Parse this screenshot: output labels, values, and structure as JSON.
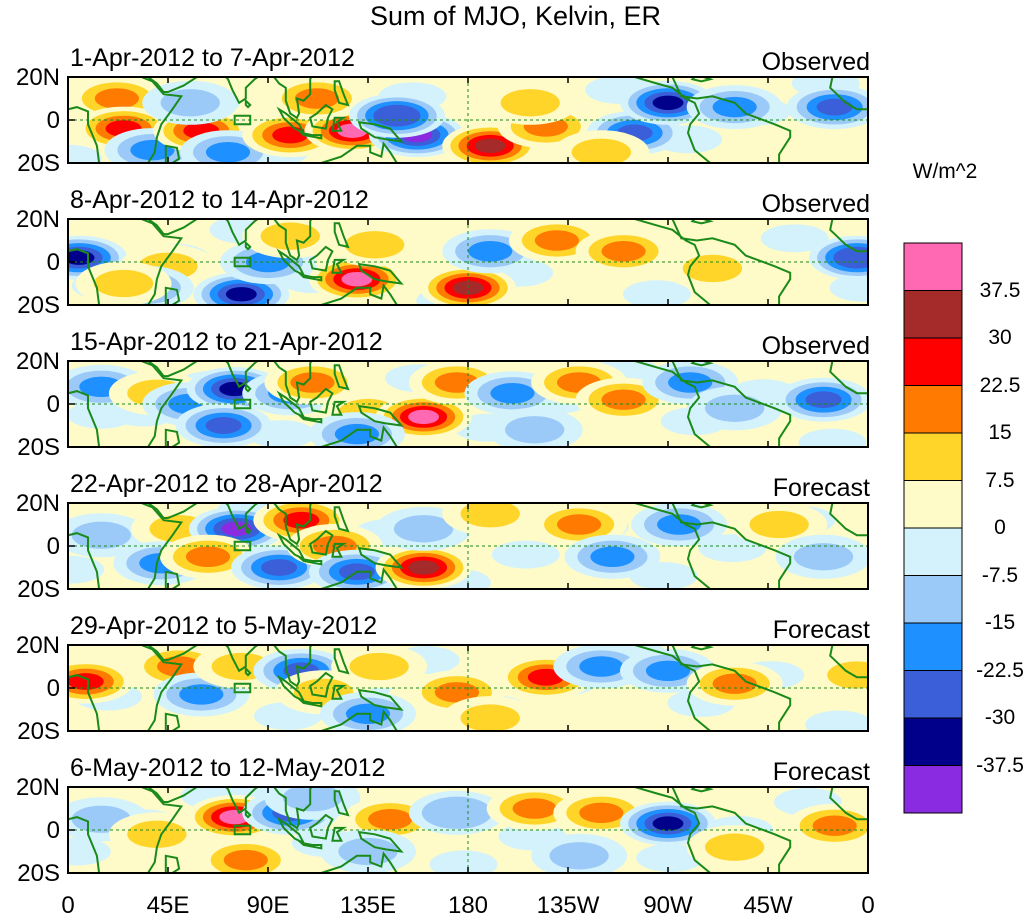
{
  "chart_data": {
    "type": "heatmap",
    "title": "Sum of MJO, Kelvin, ER",
    "colorbar": {
      "units": "W/m^2",
      "levels": [
        -37.5,
        -30,
        -22.5,
        -15,
        -7.5,
        0,
        7.5,
        15,
        22.5,
        30,
        37.5
      ],
      "colors": [
        "#8a2be2",
        "#00008b",
        "#3a5fd9",
        "#1e90ff",
        "#9ccaf8",
        "#d4f2fb",
        "#fffbc8",
        "#ffd52a",
        "#ff7a00",
        "#ff0000",
        "#a52a2a",
        "#ff69b4"
      ]
    },
    "x_ticks": [
      "0",
      "45E",
      "90E",
      "135E",
      "180",
      "135W",
      "90W",
      "45W",
      "0"
    ],
    "x_range_deg": [
      0,
      360
    ],
    "y_ticks": [
      "20N",
      "0",
      "20S"
    ],
    "y_range_deg": [
      -20,
      20
    ],
    "panels": [
      {
        "title": "1-Apr-2012 to 7-Apr-2012",
        "kind": "Observed",
        "features": [
          {
            "lon": 22,
            "lat": 10,
            "val": 20
          },
          {
            "lon": 25,
            "lat": -4,
            "val": 24
          },
          {
            "lon": 38,
            "lat": -14,
            "val": -16
          },
          {
            "lon": 60,
            "lat": -5,
            "val": 25
          },
          {
            "lon": 72,
            "lat": -15,
            "val": -18
          },
          {
            "lon": 55,
            "lat": 8,
            "val": -8
          },
          {
            "lon": 100,
            "lat": -7,
            "val": 28
          },
          {
            "lon": 128,
            "lat": -5,
            "val": 45
          },
          {
            "lon": 112,
            "lat": 10,
            "val": 18
          },
          {
            "lon": 157,
            "lat": -7,
            "val": -44
          },
          {
            "lon": 148,
            "lat": 2,
            "val": -30
          },
          {
            "lon": 190,
            "lat": -12,
            "val": 30
          },
          {
            "lon": 215,
            "lat": -3,
            "val": 22
          },
          {
            "lon": 208,
            "lat": 8,
            "val": 12
          },
          {
            "lon": 255,
            "lat": -6,
            "val": -28
          },
          {
            "lon": 270,
            "lat": 8,
            "val": -35
          },
          {
            "lon": 300,
            "lat": 6,
            "val": -16
          },
          {
            "lon": 345,
            "lat": 6,
            "val": -28
          },
          {
            "lon": 240,
            "lat": -15,
            "val": 9
          }
        ]
      },
      {
        "title": "8-Apr-2012 to 14-Apr-2012",
        "kind": "Observed",
        "features": [
          {
            "lon": 5,
            "lat": 2,
            "val": -32
          },
          {
            "lon": 45,
            "lat": -2,
            "val": 12
          },
          {
            "lon": 35,
            "lat": -12,
            "val": -20
          },
          {
            "lon": 78,
            "lat": -15,
            "val": -33
          },
          {
            "lon": 90,
            "lat": 0,
            "val": -16
          },
          {
            "lon": 100,
            "lat": 12,
            "val": 10
          },
          {
            "lon": 130,
            "lat": -8,
            "val": 45
          },
          {
            "lon": 138,
            "lat": 8,
            "val": 10
          },
          {
            "lon": 180,
            "lat": -12,
            "val": 30
          },
          {
            "lon": 190,
            "lat": 5,
            "val": -20
          },
          {
            "lon": 220,
            "lat": 10,
            "val": 18
          },
          {
            "lon": 250,
            "lat": 5,
            "val": 15
          },
          {
            "lon": 290,
            "lat": -3,
            "val": 10
          },
          {
            "lon": 355,
            "lat": 2,
            "val": -30
          },
          {
            "lon": 25,
            "lat": -10,
            "val": 12
          }
        ]
      },
      {
        "title": "15-Apr-2012 to 21-Apr-2012",
        "kind": "Observed",
        "features": [
          {
            "lon": 15,
            "lat": 8,
            "val": -22
          },
          {
            "lon": 40,
            "lat": 5,
            "val": 12
          },
          {
            "lon": 55,
            "lat": 0,
            "val": -16
          },
          {
            "lon": 75,
            "lat": 7,
            "val": -34
          },
          {
            "lon": 70,
            "lat": -10,
            "val": -24
          },
          {
            "lon": 100,
            "lat": 5,
            "val": -20
          },
          {
            "lon": 110,
            "lat": 10,
            "val": 22
          },
          {
            "lon": 135,
            "lat": -4,
            "val": 12
          },
          {
            "lon": 160,
            "lat": -6,
            "val": 42
          },
          {
            "lon": 130,
            "lat": -14,
            "val": -20
          },
          {
            "lon": 175,
            "lat": 10,
            "val": 15
          },
          {
            "lon": 200,
            "lat": 5,
            "val": -18
          },
          {
            "lon": 230,
            "lat": 10,
            "val": 20
          },
          {
            "lon": 250,
            "lat": 2,
            "val": 15
          },
          {
            "lon": 280,
            "lat": 10,
            "val": -22
          },
          {
            "lon": 300,
            "lat": -2,
            "val": -12
          },
          {
            "lon": 340,
            "lat": 2,
            "val": -28
          },
          {
            "lon": 210,
            "lat": -12,
            "val": -10
          }
        ]
      },
      {
        "title": "22-Apr-2012 to 28-Apr-2012",
        "kind": "Forecast",
        "features": [
          {
            "lon": 15,
            "lat": 5,
            "val": -10
          },
          {
            "lon": 50,
            "lat": 8,
            "val": 12
          },
          {
            "lon": 42,
            "lat": -8,
            "val": -22
          },
          {
            "lon": 76,
            "lat": 8,
            "val": -38
          },
          {
            "lon": 63,
            "lat": -5,
            "val": 20
          },
          {
            "lon": 95,
            "lat": -10,
            "val": -26
          },
          {
            "lon": 105,
            "lat": 12,
            "val": 28
          },
          {
            "lon": 120,
            "lat": 0,
            "val": 18
          },
          {
            "lon": 130,
            "lat": -12,
            "val": -24
          },
          {
            "lon": 160,
            "lat": -10,
            "val": 30
          },
          {
            "lon": 160,
            "lat": 8,
            "val": -12
          },
          {
            "lon": 190,
            "lat": 15,
            "val": 10
          },
          {
            "lon": 230,
            "lat": 10,
            "val": 15
          },
          {
            "lon": 245,
            "lat": -5,
            "val": -18
          },
          {
            "lon": 275,
            "lat": 10,
            "val": -22
          },
          {
            "lon": 320,
            "lat": 10,
            "val": 12
          },
          {
            "lon": 340,
            "lat": -5,
            "val": -10
          }
        ]
      },
      {
        "title": "29-Apr-2012 to 5-May-2012",
        "kind": "Forecast",
        "features": [
          {
            "lon": 8,
            "lat": 3,
            "val": 26
          },
          {
            "lon": 50,
            "lat": 10,
            "val": 15
          },
          {
            "lon": 60,
            "lat": -3,
            "val": -22
          },
          {
            "lon": 78,
            "lat": 10,
            "val": 12
          },
          {
            "lon": 105,
            "lat": 8,
            "val": -26
          },
          {
            "lon": 115,
            "lat": -2,
            "val": 10
          },
          {
            "lon": 140,
            "lat": 10,
            "val": 12
          },
          {
            "lon": 175,
            "lat": -2,
            "val": 20
          },
          {
            "lon": 135,
            "lat": -12,
            "val": -18
          },
          {
            "lon": 215,
            "lat": 5,
            "val": 25
          },
          {
            "lon": 240,
            "lat": 10,
            "val": -22
          },
          {
            "lon": 270,
            "lat": 8,
            "val": -20
          },
          {
            "lon": 300,
            "lat": 2,
            "val": 20
          },
          {
            "lon": 355,
            "lat": 6,
            "val": 14
          },
          {
            "lon": 190,
            "lat": -14,
            "val": 9
          }
        ]
      },
      {
        "title": "6-May-2012 to 12-May-2012",
        "kind": "Forecast",
        "features": [
          {
            "lon": 15,
            "lat": 5,
            "val": -12
          },
          {
            "lon": 40,
            "lat": -2,
            "val": 10
          },
          {
            "lon": 75,
            "lat": 6,
            "val": 40
          },
          {
            "lon": 80,
            "lat": -14,
            "val": 22
          },
          {
            "lon": 100,
            "lat": 8,
            "val": -28
          },
          {
            "lon": 110,
            "lat": 15,
            "val": -12
          },
          {
            "lon": 145,
            "lat": 5,
            "val": 18
          },
          {
            "lon": 135,
            "lat": -10,
            "val": -14
          },
          {
            "lon": 175,
            "lat": 8,
            "val": -15
          },
          {
            "lon": 210,
            "lat": 10,
            "val": 20
          },
          {
            "lon": 240,
            "lat": 8,
            "val": 18
          },
          {
            "lon": 270,
            "lat": 3,
            "val": -34
          },
          {
            "lon": 300,
            "lat": -8,
            "val": 12
          },
          {
            "lon": 345,
            "lat": 2,
            "val": 18
          },
          {
            "lon": 230,
            "lat": -12,
            "val": -8
          }
        ]
      }
    ]
  }
}
